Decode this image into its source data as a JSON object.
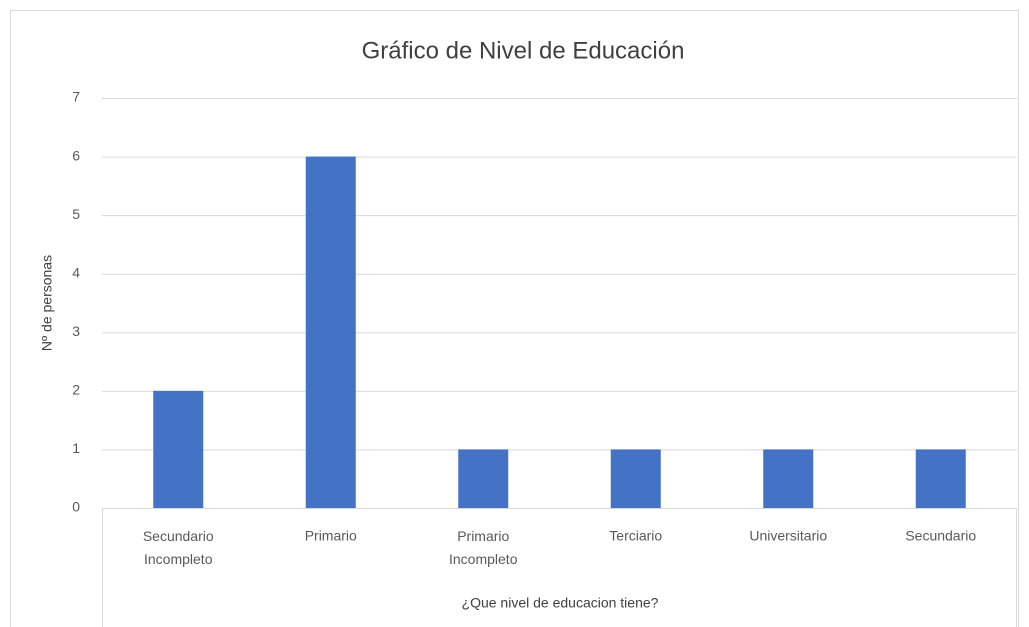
{
  "chart_data": {
    "type": "bar",
    "title": "Gráfico de Nivel de Educación",
    "x_label": "¿Que nivel de educacion tiene?",
    "y_label": "Nº de personas",
    "categories": [
      "Secundario Incompleto",
      "Primario",
      "Primario Incompleto",
      "Terciario",
      "Universitario",
      "Secundario"
    ],
    "values": [
      2,
      6,
      1,
      1,
      1,
      1
    ],
    "color": "#4472c4",
    "ylim": [
      0,
      7
    ],
    "yticks": [
      0,
      1,
      2,
      3,
      4,
      5,
      6,
      7
    ],
    "grid": true
  }
}
